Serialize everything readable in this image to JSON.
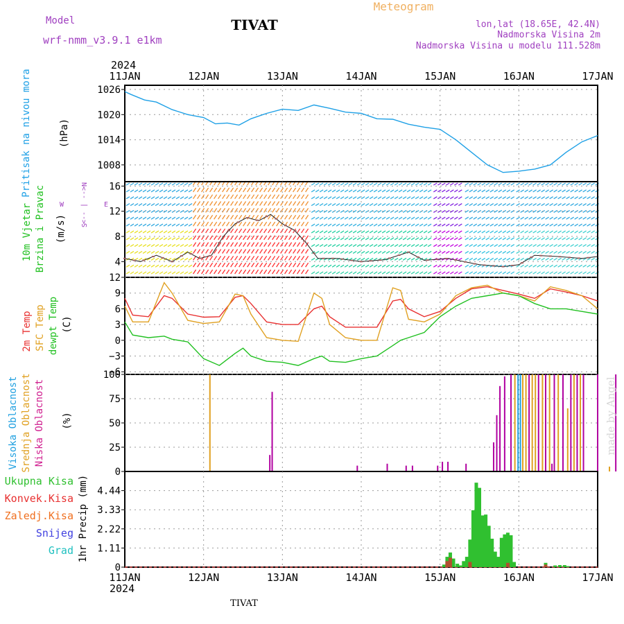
{
  "header": {
    "model_label": "Model",
    "model_name": "wrf-nmm_v3.9.1 e1km",
    "station": "TIVAT",
    "kind": "Meteogram",
    "coords": "lon,lat (18.65E, 42.4N)",
    "elevation": "Nadmorska Visina 2m",
    "model_elevation": "Nadmorska Visina u modelu 111.528m"
  },
  "footer": {
    "station": "TIVAT",
    "credit": "made by Angel"
  },
  "colors": {
    "pressure": "#1ea0e6",
    "temp2m": "#e83030",
    "sfc_temp": "#e0a020",
    "dewpt": "#20c020",
    "high_cloud": "#20a0e0",
    "mid_cloud": "#e0a020",
    "low_cloud": "#b000a0",
    "total_precip": "#30c030",
    "conv_precip": "#e83030",
    "frz_precip": "#f07020",
    "snow": "#4040e0",
    "graupel": "#20c0c0",
    "title_purple": "#a040c0",
    "meteogram_title": "#f0b060"
  },
  "chart_data": [
    {
      "id": "pressure",
      "type": "line",
      "title": "",
      "ylabel": "Pritisak na nivou mora",
      "unit": "(hPa)",
      "ylim": [
        1004,
        1027
      ],
      "yticks": [
        1008,
        1014,
        1020,
        1026
      ],
      "x_days": [
        0,
        0.08,
        0.25,
        0.4,
        0.6,
        0.8,
        1.0,
        1.15,
        1.3,
        1.45,
        1.6,
        1.8,
        2.0,
        2.2,
        2.4,
        2.6,
        2.8,
        3.0,
        3.2,
        3.4,
        3.6,
        3.8,
        4.0,
        4.2,
        4.4,
        4.6,
        4.8,
        5.0,
        5.2,
        5.4,
        5.6,
        5.8,
        6.0
      ],
      "series": [
        {
          "color": "#1ea0e6",
          "values": [
            1025.5,
            1024.8,
            1023.5,
            1023.0,
            1021.2,
            1020.0,
            1019.3,
            1017.8,
            1018.0,
            1017.5,
            1019.0,
            1020.3,
            1021.3,
            1021.0,
            1022.3,
            1021.5,
            1020.6,
            1020.3,
            1019.0,
            1018.9,
            1017.7,
            1017.0,
            1016.5,
            1014.0,
            1011.0,
            1008.0,
            1006.2,
            1006.5,
            1007.0,
            1008.0,
            1011.0,
            1013.5,
            1015.0
          ]
        }
      ]
    },
    {
      "id": "wind",
      "type": "line",
      "title": "",
      "ylabel": "10m Vjetar Brzina i Pravac",
      "unit": "(m/s)",
      "ylim": [
        1.5,
        16.7
      ],
      "yticks": [
        4,
        8,
        12,
        16
      ],
      "compass": [
        "N",
        "W",
        "S",
        "E"
      ],
      "x_days": [
        0,
        0.2,
        0.4,
        0.6,
        0.8,
        0.95,
        1.1,
        1.25,
        1.4,
        1.55,
        1.7,
        1.85,
        2.0,
        2.15,
        2.3,
        2.45,
        2.7,
        3.0,
        3.3,
        3.6,
        3.8,
        4.1,
        4.3,
        4.5,
        4.8,
        5.0,
        5.2,
        5.5,
        5.8,
        6.0
      ],
      "series": [
        {
          "name": "wind speed",
          "color": "#202020",
          "values": [
            4.5,
            4.0,
            5.0,
            4.0,
            5.5,
            4.5,
            5.0,
            8.0,
            10.0,
            11.0,
            10.5,
            11.5,
            10.0,
            9.0,
            7.0,
            4.5,
            4.5,
            4.0,
            4.3,
            5.5,
            4.2,
            4.5,
            4.0,
            3.5,
            3.2,
            3.5,
            5.0,
            4.8,
            4.5,
            4.8
          ]
        }
      ],
      "colored_segments_days": [
        [
          0,
          0.85
        ],
        [
          0.85,
          2.35
        ],
        [
          2.35,
          3.9
        ],
        [
          3.9,
          4.3
        ],
        [
          4.3,
          4.95
        ],
        [
          4.95,
          6.0
        ]
      ]
    },
    {
      "id": "temperature",
      "type": "line",
      "title": "",
      "ylabel": "2m Temp / SFC Temp / dewpt Temp",
      "unit": "(C)",
      "ylim": [
        -6.5,
        12
      ],
      "yticks": [
        -6,
        -3,
        0,
        3,
        6,
        9,
        12
      ],
      "x_days": [
        0,
        0.1,
        0.3,
        0.5,
        0.6,
        0.8,
        1.0,
        1.2,
        1.4,
        1.5,
        1.6,
        1.8,
        2.0,
        2.2,
        2.4,
        2.5,
        2.6,
        2.8,
        3.0,
        3.2,
        3.4,
        3.5,
        3.6,
        3.8,
        4.0,
        4.2,
        4.4,
        4.6,
        4.8,
        5.0,
        5.2,
        5.4,
        5.6,
        5.8,
        6.0
      ],
      "series": [
        {
          "name": "2m Temp",
          "color": "#e83030",
          "values": [
            8.0,
            4.8,
            4.5,
            8.5,
            8.0,
            5.0,
            4.4,
            4.5,
            8.2,
            8.5,
            7.0,
            3.5,
            3.0,
            3.0,
            6.0,
            6.5,
            4.5,
            2.5,
            2.5,
            2.5,
            7.5,
            7.8,
            6.0,
            4.5,
            5.5,
            8.0,
            9.8,
            10.2,
            9.5,
            8.8,
            8.0,
            9.8,
            9.2,
            8.5,
            7.5
          ]
        },
        {
          "name": "SFC Temp",
          "color": "#e0a020",
          "values": [
            6.5,
            3.5,
            3.5,
            11.0,
            9.0,
            3.8,
            3.2,
            3.5,
            8.8,
            8.5,
            5.0,
            0.5,
            0.0,
            -0.2,
            9.0,
            8.0,
            3.0,
            0.5,
            0.0,
            0.0,
            10.0,
            9.5,
            4.0,
            3.5,
            5.0,
            8.5,
            10.0,
            10.5,
            9.0,
            8.5,
            7.5,
            10.2,
            9.5,
            8.5,
            6.0
          ]
        },
        {
          "name": "dewpt Temp",
          "color": "#20c020",
          "values": [
            3.5,
            1.0,
            0.5,
            0.8,
            0.2,
            -0.3,
            -3.5,
            -4.8,
            -2.5,
            -1.5,
            -3.0,
            -4.0,
            -4.2,
            -4.8,
            -3.5,
            -3.0,
            -4.0,
            -4.2,
            -3.5,
            -3.0,
            -1.0,
            0.0,
            0.5,
            1.5,
            4.5,
            6.5,
            8.0,
            8.5,
            9.0,
            8.5,
            7.0,
            6.0,
            6.0,
            5.5,
            5.0
          ]
        }
      ]
    },
    {
      "id": "clouds",
      "type": "bar",
      "title": "",
      "ylabel": "Visoka Oblacnost / Srednja Oblacnost / Niska Oblacnost",
      "unit": "(%)",
      "ylim": [
        0,
        100
      ],
      "yticks": [
        0,
        25,
        50,
        75,
        100
      ],
      "bars": [
        {
          "x": 1.08,
          "v": 100,
          "s": "mid"
        },
        {
          "x": 1.84,
          "v": 17,
          "s": "low"
        },
        {
          "x": 1.87,
          "v": 82,
          "s": "low"
        },
        {
          "x": 2.95,
          "v": 6,
          "s": "low"
        },
        {
          "x": 3.33,
          "v": 8,
          "s": "low"
        },
        {
          "x": 3.57,
          "v": 6,
          "s": "low"
        },
        {
          "x": 3.65,
          "v": 6,
          "s": "low"
        },
        {
          "x": 3.97,
          "v": 6,
          "s": "low"
        },
        {
          "x": 4.03,
          "v": 10,
          "s": "low"
        },
        {
          "x": 4.1,
          "v": 10,
          "s": "low"
        },
        {
          "x": 4.33,
          "v": 8,
          "s": "low"
        },
        {
          "x": 4.68,
          "v": 30,
          "s": "low"
        },
        {
          "x": 4.72,
          "v": 58,
          "s": "low"
        },
        {
          "x": 4.76,
          "v": 88,
          "s": "low"
        },
        {
          "x": 4.82,
          "v": 98,
          "s": "low"
        },
        {
          "x": 4.9,
          "v": 100,
          "s": "low"
        },
        {
          "x": 4.95,
          "v": 100,
          "s": "mid"
        },
        {
          "x": 4.99,
          "v": 100,
          "s": "high"
        },
        {
          "x": 5.02,
          "v": 100,
          "s": "high"
        },
        {
          "x": 5.05,
          "v": 100,
          "s": "mid"
        },
        {
          "x": 5.09,
          "v": 100,
          "s": "mid"
        },
        {
          "x": 5.13,
          "v": 100,
          "s": "low"
        },
        {
          "x": 5.17,
          "v": 100,
          "s": "mid"
        },
        {
          "x": 5.21,
          "v": 100,
          "s": "mid"
        },
        {
          "x": 5.25,
          "v": 100,
          "s": "low"
        },
        {
          "x": 5.3,
          "v": 100,
          "s": "mid"
        },
        {
          "x": 5.34,
          "v": 100,
          "s": "low"
        },
        {
          "x": 5.39,
          "v": 100,
          "s": "mid"
        },
        {
          "x": 5.45,
          "v": 100,
          "s": "low"
        },
        {
          "x": 5.5,
          "v": 100,
          "s": "mid"
        },
        {
          "x": 5.56,
          "v": 100,
          "s": "low"
        },
        {
          "x": 5.62,
          "v": 65,
          "s": "mid"
        },
        {
          "x": 5.66,
          "v": 100,
          "s": "low"
        },
        {
          "x": 5.7,
          "v": 100,
          "s": "mid"
        },
        {
          "x": 5.74,
          "v": 100,
          "s": "low"
        },
        {
          "x": 5.78,
          "v": 100,
          "s": "mid"
        },
        {
          "x": 5.82,
          "v": 100,
          "s": "low"
        },
        {
          "x": 6.0,
          "v": 100,
          "s": "low"
        },
        {
          "x": 6.23,
          "v": 100,
          "s": "low"
        },
        {
          "x": 6.38,
          "v": 100,
          "s": "low"
        },
        {
          "x": 6.47,
          "v": 100,
          "s": "low"
        },
        {
          "x": 6.58,
          "v": 100,
          "s": "low"
        },
        {
          "x": 6.73,
          "v": 100,
          "s": "low"
        },
        {
          "x": 6.88,
          "v": 70,
          "s": "low"
        },
        {
          "x": 6.95,
          "v": 100,
          "s": "low"
        },
        {
          "x": 5.42,
          "v": 8,
          "s": "low"
        },
        {
          "x": 6.15,
          "v": 5,
          "s": "mid"
        }
      ]
    },
    {
      "id": "precip",
      "type": "bar",
      "title": "",
      "ylabel": "1hr Precip",
      "unit": "(mm)",
      "ylim": [
        0,
        5.55
      ],
      "yticks": [
        0,
        1.11,
        2.22,
        3.33,
        4.44
      ],
      "legend": [
        "Ukupna Kisa",
        "Konvek.Kisa",
        "Zaledj.Kisa",
        "Snijeg",
        "Grad"
      ],
      "bars": [
        {
          "x": 4.05,
          "v": 0.15
        },
        {
          "x": 4.09,
          "v": 0.6
        },
        {
          "x": 4.13,
          "v": 0.85
        },
        {
          "x": 4.17,
          "v": 0.5
        },
        {
          "x": 4.22,
          "v": 0.2
        },
        {
          "x": 4.26,
          "v": 0.1
        },
        {
          "x": 4.3,
          "v": 0.35
        },
        {
          "x": 4.34,
          "v": 0.6
        },
        {
          "x": 4.38,
          "v": 1.6
        },
        {
          "x": 4.42,
          "v": 3.3
        },
        {
          "x": 4.46,
          "v": 4.9
        },
        {
          "x": 4.5,
          "v": 4.6
        },
        {
          "x": 4.54,
          "v": 3.0
        },
        {
          "x": 4.58,
          "v": 3.05
        },
        {
          "x": 4.62,
          "v": 2.4
        },
        {
          "x": 4.66,
          "v": 1.65
        },
        {
          "x": 4.7,
          "v": 0.9
        },
        {
          "x": 4.74,
          "v": 0.6
        },
        {
          "x": 4.78,
          "v": 1.7
        },
        {
          "x": 4.82,
          "v": 1.9
        },
        {
          "x": 4.86,
          "v": 2.0
        },
        {
          "x": 4.9,
          "v": 1.85
        },
        {
          "x": 4.94,
          "v": 0.3
        },
        {
          "x": 5.34,
          "v": 0.25
        },
        {
          "x": 5.46,
          "v": 0.1
        },
        {
          "x": 5.52,
          "v": 0.12
        },
        {
          "x": 5.58,
          "v": 0.12
        },
        {
          "x": 5.62,
          "v": 0.06
        }
      ],
      "conv_bars": [
        {
          "x": 4.09,
          "v": 0.35
        },
        {
          "x": 4.13,
          "v": 0.55
        },
        {
          "x": 4.38,
          "v": 0.3
        },
        {
          "x": 4.86,
          "v": 0.25
        },
        {
          "x": 5.34,
          "v": 0.15
        }
      ]
    }
  ],
  "x_axis": {
    "year": "2024",
    "labels": [
      "11JAN",
      "12JAN",
      "13JAN",
      "14JAN",
      "15JAN",
      "16JAN",
      "17JAN"
    ]
  }
}
